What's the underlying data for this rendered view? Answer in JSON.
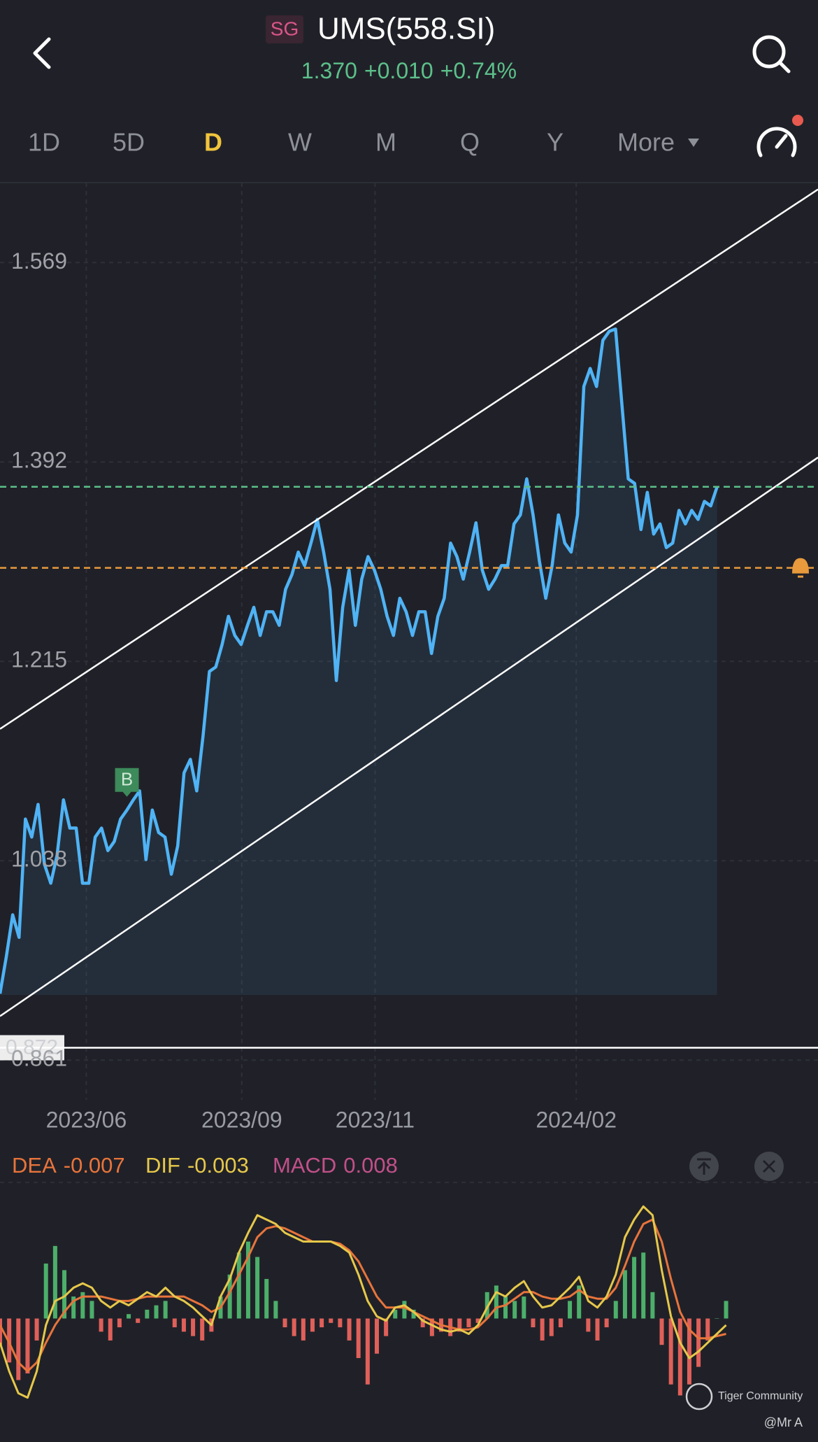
{
  "header": {
    "market_badge": "SG",
    "symbol": "UMS(558.SI)",
    "price": "1.370",
    "change": "+0.010",
    "change_pct": "+0.74%"
  },
  "tabs": [
    "1D",
    "5D",
    "D",
    "W",
    "M",
    "Q",
    "Y",
    "More"
  ],
  "active_tab": 2,
  "watermark": {
    "brand": "Tiger Community",
    "author": "@Mr A"
  },
  "chart_data": [
    {
      "type": "line",
      "series": [
        {
          "color": "#4fb3f5",
          "values": [
            0.92,
            0.953,
            0.99,
            0.97,
            1.075,
            1.059,
            1.088,
            1.035,
            1.018,
            1.043,
            1.092,
            1.067,
            1.067,
            1.018,
            1.018,
            1.059,
            1.067,
            1.047,
            1.055,
            1.075,
            1.083,
            1.092,
            1.1,
            1.039,
            1.083,
            1.063,
            1.059,
            1.026,
            1.051,
            1.116,
            1.128,
            1.1,
            1.149,
            1.206,
            1.21,
            1.23,
            1.255,
            1.238,
            1.23,
            1.247,
            1.263,
            1.238,
            1.259,
            1.259,
            1.247,
            1.279,
            1.292,
            1.312,
            1.3,
            1.32,
            1.341,
            1.312,
            1.279,
            1.198,
            1.263,
            1.296,
            1.247,
            1.288,
            1.308,
            1.296,
            1.279,
            1.255,
            1.238,
            1.271,
            1.259,
            1.238,
            1.259,
            1.259,
            1.222,
            1.255,
            1.271,
            1.32,
            1.308,
            1.288,
            1.312,
            1.338,
            1.296,
            1.279,
            1.288,
            1.3,
            1.3,
            1.337,
            1.345,
            1.377,
            1.345,
            1.304,
            1.271,
            1.3,
            1.345,
            1.32,
            1.312,
            1.345,
            1.459,
            1.475,
            1.459,
            1.5,
            1.508,
            1.51,
            1.443,
            1.377,
            1.373,
            1.332,
            1.365,
            1.328,
            1.337,
            1.316,
            1.32,
            1.349,
            1.337,
            1.349,
            1.341,
            1.357,
            1.353,
            1.37
          ]
        }
      ],
      "xlim": [
        0,
        128.9
      ],
      "xticks": [
        {
          "value": 13.6,
          "label": "2023/06"
        },
        {
          "value": 38.1,
          "label": "2023/09"
        },
        {
          "value": 59.1,
          "label": "2023/11"
        },
        {
          "value": 90.8,
          "label": "2024/02"
        }
      ],
      "ylim": [
        0.84,
        1.64
      ],
      "yticks": [
        0.861,
        1.038,
        1.215,
        1.392,
        1.569
      ],
      "grid": true,
      "reference_lines": [
        {
          "value": 1.37,
          "color": "#5cc08a",
          "style": "dashed"
        },
        {
          "value": 1.298,
          "color": "#e89a3c",
          "style": "dashed",
          "alert": true
        },
        {
          "value": 0.872,
          "color": "#ffffff",
          "style": "solid",
          "labeled": true
        }
      ],
      "trendlines": [
        {
          "x": [
            0,
            128.9
          ],
          "y": [
            1.155,
            1.634
          ],
          "color": "#ffffff"
        },
        {
          "x": [
            0,
            128.9
          ],
          "y": [
            0.9,
            1.396
          ],
          "color": "#ffffff"
        }
      ],
      "markers": [
        {
          "x": 20,
          "label": "B",
          "color": "#3d8a5a"
        }
      ]
    },
    {
      "type": "macd",
      "series": [
        {
          "name": "DEA",
          "color": "#e8743b",
          "values": [
            -0.003,
            -0.011,
            -0.02,
            -0.024,
            -0.02,
            -0.011,
            -0.003,
            0.003,
            0.008,
            0.01,
            0.01,
            0.01,
            0.009,
            0.008,
            0.008,
            0.009,
            0.01,
            0.01,
            0.01,
            0.01,
            0.01,
            0.008,
            0.006,
            0.003,
            0.005,
            0.012,
            0.02,
            0.028,
            0.037,
            0.041,
            0.042,
            0.041,
            0.039,
            0.037,
            0.035,
            0.035,
            0.035,
            0.034,
            0.031,
            0.026,
            0.018,
            0.01,
            0.005,
            0.005,
            0.005,
            0.003,
            0.001,
            -0.001,
            -0.003,
            -0.004,
            -0.005,
            -0.005,
            -0.004,
            0,
            0.005,
            0.006,
            0.009,
            0.012,
            0.012,
            0.01,
            0.009,
            0.009,
            0.01,
            0.013,
            0.01,
            0.009,
            0.009,
            0.014,
            0.024,
            0.035,
            0.043,
            0.045,
            0.035,
            0.018,
            0.003,
            -0.005,
            -0.009,
            -0.009,
            -0.008,
            -0.007
          ]
        },
        {
          "name": "DIF",
          "color": "#e6c84a",
          "values": [
            -0.011,
            -0.024,
            -0.034,
            -0.036,
            -0.024,
            -0.003,
            0.008,
            0.01,
            0.014,
            0.016,
            0.014,
            0.008,
            0.005,
            0.008,
            0.006,
            0.009,
            0.012,
            0.01,
            0.014,
            0.01,
            0.008,
            0.005,
            0.001,
            -0.003,
            0.01,
            0.018,
            0.03,
            0.039,
            0.047,
            0.045,
            0.043,
            0.039,
            0.037,
            0.035,
            0.035,
            0.035,
            0.035,
            0.033,
            0.03,
            0.02,
            0.008,
            0.001,
            -0.001,
            0.005,
            0.006,
            0.003,
            -0.001,
            -0.003,
            -0.005,
            -0.006,
            -0.005,
            -0.007,
            -0.003,
            0.005,
            0.012,
            0.01,
            0.014,
            0.017,
            0.01,
            0.005,
            0.006,
            0.01,
            0.014,
            0.019,
            0.008,
            0.005,
            0.01,
            0.02,
            0.037,
            0.045,
            0.051,
            0.047,
            0.022,
            0.001,
            -0.011,
            -0.018,
            -0.015,
            -0.011,
            -0.007,
            -0.003
          ]
        },
        {
          "name": "MACD",
          "color": "#c2508a",
          "up_color": "#4caf6a",
          "down_color": "#e0605a",
          "values": [
            -0.012,
            -0.02,
            -0.028,
            -0.025,
            -0.01,
            0.025,
            0.033,
            0.022,
            0.01,
            0.012,
            0.008,
            -0.006,
            -0.01,
            -0.004,
            0.002,
            -0.002,
            0.004,
            0.006,
            0.008,
            -0.004,
            -0.006,
            -0.008,
            -0.01,
            -0.006,
            0.01,
            0.02,
            0.03,
            0.035,
            0.028,
            0.018,
            0.008,
            -0.004,
            -0.008,
            -0.01,
            -0.006,
            -0.004,
            -0.002,
            -0.004,
            -0.01,
            -0.018,
            -0.03,
            -0.016,
            -0.008,
            0.004,
            0.008,
            0.004,
            -0.004,
            -0.008,
            -0.006,
            -0.008,
            -0.006,
            -0.004,
            -0.002,
            0.012,
            0.015,
            0.01,
            0.008,
            0.01,
            -0.004,
            -0.01,
            -0.008,
            -0.004,
            0.008,
            0.015,
            -0.006,
            -0.01,
            -0.004,
            0.008,
            0.022,
            0.028,
            0.03,
            0.012,
            -0.012,
            -0.03,
            -0.035,
            -0.03,
            -0.022,
            -0.01,
            0,
            0.008
          ]
        }
      ],
      "xlim": [
        0,
        89
      ],
      "ylim": [
        -0.053,
        0.06
      ]
    }
  ]
}
